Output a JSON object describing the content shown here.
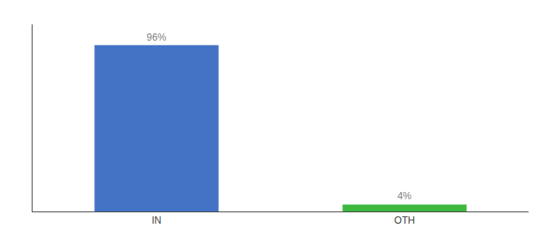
{
  "chart_data": {
    "type": "bar",
    "categories": [
      "IN",
      "OTH"
    ],
    "values": [
      96,
      4
    ],
    "value_labels": [
      "96%",
      "4%"
    ],
    "data_labels": true,
    "colors": [
      "#4472c4",
      "#3db83d"
    ],
    "ylim": [
      0,
      108
    ],
    "tick_labels": "x",
    "grid": false
  }
}
